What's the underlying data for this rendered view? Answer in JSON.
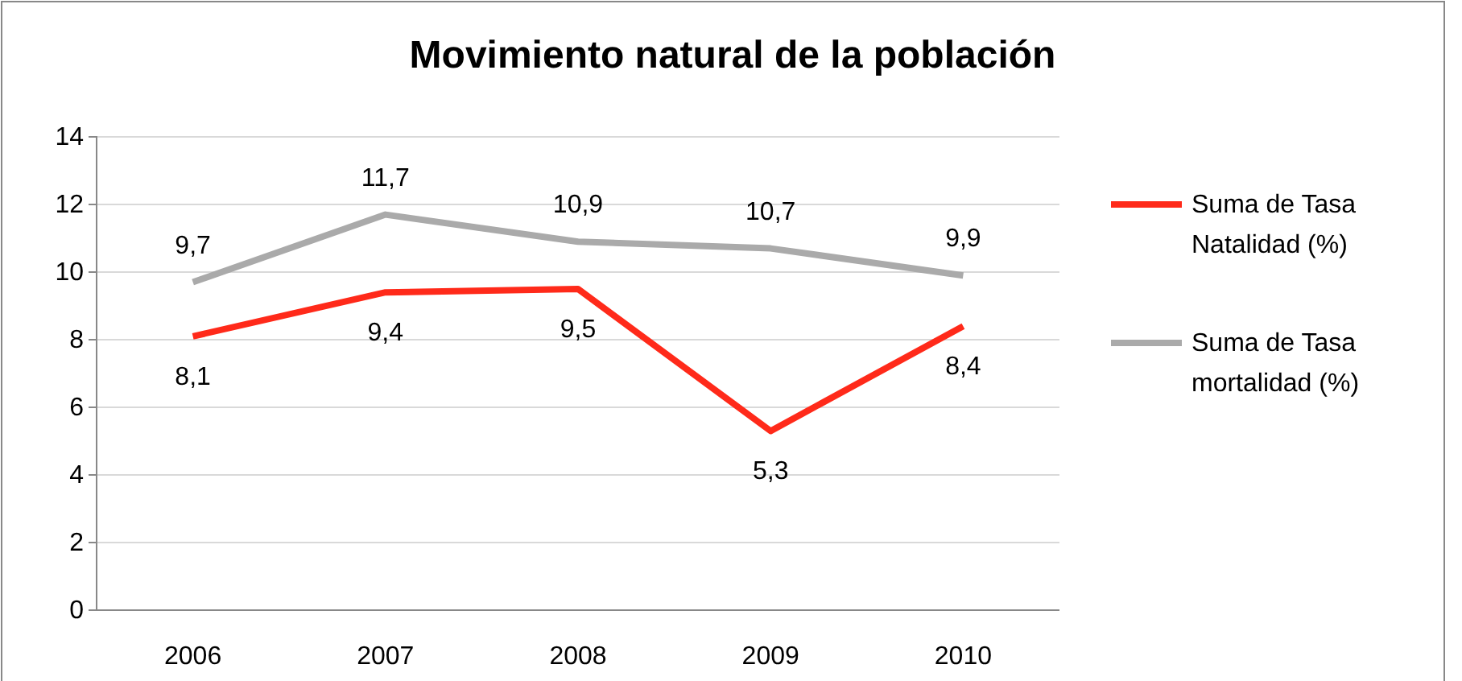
{
  "chart_data": {
    "type": "line",
    "title": "Movimiento natural de la población",
    "categories": [
      "2006",
      "2007",
      "2008",
      "2009",
      "2010"
    ],
    "series": [
      {
        "name": "Suma de Tasa Natalidad (%)",
        "color": "#ff2a1a",
        "values": [
          8.1,
          9.4,
          9.5,
          5.3,
          8.4
        ],
        "value_labels": [
          "8,1",
          "9,4",
          "9,5",
          "5,3",
          "8,4"
        ]
      },
      {
        "name": "Suma de Tasa mortalidad (%)",
        "color": "#aaaaaa",
        "values": [
          9.7,
          11.7,
          10.9,
          10.7,
          9.9
        ],
        "value_labels": [
          "9,7",
          "11,7",
          "10,9",
          "10,7",
          "9,9"
        ]
      }
    ],
    "ylim": [
      0,
      14
    ],
    "yticks": [
      0,
      2,
      4,
      6,
      8,
      10,
      12,
      14
    ],
    "grid": "y",
    "legend": "right"
  }
}
